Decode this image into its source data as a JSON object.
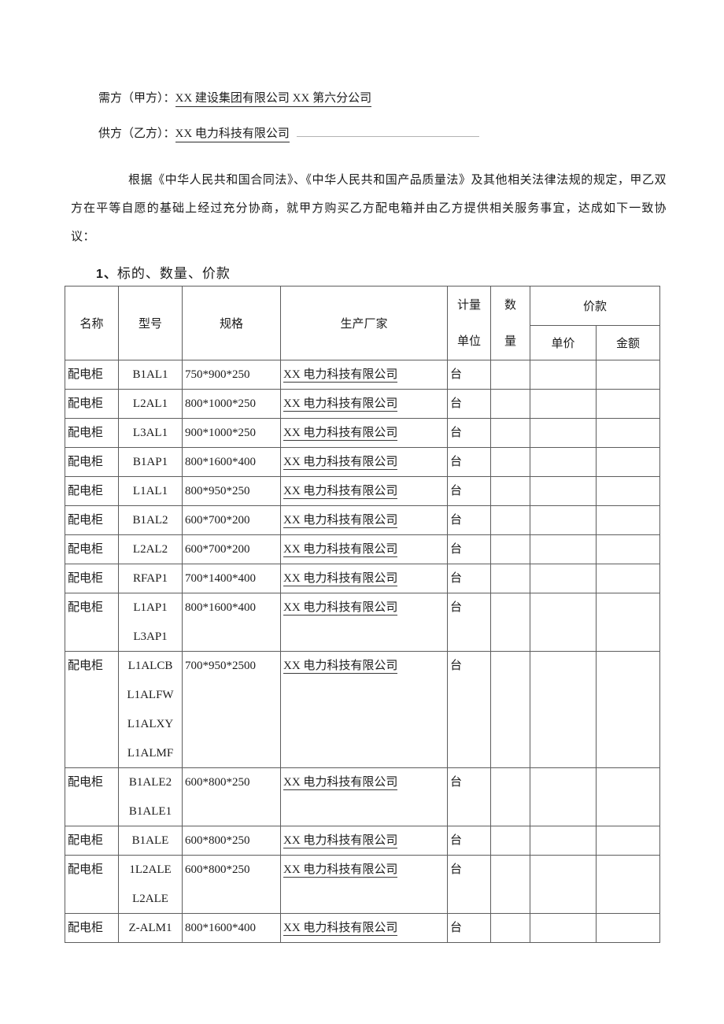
{
  "parties": {
    "buyer_label": "需方（甲方）：",
    "buyer_value": "XX 建设集团有限公司 XX 第六分公司",
    "supplier_label": "供方（乙方）：",
    "supplier_value": "XX 电力科技有限公司"
  },
  "intro": "根据《中华人民共和国合同法》、《中华人民共和国产品质量法》及其他相关法律法规的规定，甲乙双方在平等自愿的基础上经过充分协商，就甲方购买乙方配电箱并由乙方提供相关服务事宜，达成如下一致协议：",
  "section": {
    "number": "1、",
    "title": "标的、数量、价款"
  },
  "table": {
    "headers": {
      "name": "名称",
      "model": "型号",
      "spec": "规格",
      "manufacturer": "生产厂家",
      "unit_line1": "计量",
      "unit_line2": "单位",
      "qty_line1": "数",
      "qty_line2": "量",
      "price_group": "价款",
      "unit_price": "单价",
      "amount": "金额"
    },
    "rows": [
      {
        "name": "配电柜",
        "models": [
          "B1AL1"
        ],
        "spec": "750*900*250",
        "manufacturer": "XX 电力科技有限公司",
        "unit": "台",
        "qty": "",
        "unit_price": "",
        "amount": ""
      },
      {
        "name": "配电柜",
        "models": [
          "L2AL1"
        ],
        "spec": "800*1000*250",
        "manufacturer": "XX 电力科技有限公司",
        "unit": "台",
        "qty": "",
        "unit_price": "",
        "amount": ""
      },
      {
        "name": "配电柜",
        "models": [
          "L3AL1"
        ],
        "spec": "900*1000*250",
        "manufacturer": "XX 电力科技有限公司",
        "unit": "台",
        "qty": "",
        "unit_price": "",
        "amount": ""
      },
      {
        "name": "配电柜",
        "models": [
          "B1AP1"
        ],
        "spec": "800*1600*400",
        "manufacturer": "XX 电力科技有限公司",
        "unit": "台",
        "qty": "",
        "unit_price": "",
        "amount": ""
      },
      {
        "name": "配电柜",
        "models": [
          "L1AL1"
        ],
        "spec": "800*950*250",
        "manufacturer": "XX 电力科技有限公司",
        "unit": "台",
        "qty": "",
        "unit_price": "",
        "amount": ""
      },
      {
        "name": "配电柜",
        "models": [
          "B1AL2"
        ],
        "spec": "600*700*200",
        "manufacturer": "XX 电力科技有限公司",
        "unit": "台",
        "qty": "",
        "unit_price": "",
        "amount": ""
      },
      {
        "name": "配电柜",
        "models": [
          "L2AL2"
        ],
        "spec": "600*700*200",
        "manufacturer": "XX 电力科技有限公司",
        "unit": "台",
        "qty": "",
        "unit_price": "",
        "amount": ""
      },
      {
        "name": "配电柜",
        "models": [
          "RFAP1"
        ],
        "spec": "700*1400*400",
        "manufacturer": "XX 电力科技有限公司",
        "unit": "台",
        "qty": "",
        "unit_price": "",
        "amount": ""
      },
      {
        "name": "配电柜",
        "models": [
          "L1AP1",
          "L3AP1"
        ],
        "spec": "800*1600*400",
        "manufacturer": "XX 电力科技有限公司",
        "unit": "台",
        "qty": "",
        "unit_price": "",
        "amount": ""
      },
      {
        "name": "配电柜",
        "models": [
          "L1ALCB",
          "L1ALFW",
          "L1ALXY",
          "L1ALMF"
        ],
        "spec": "700*950*2500",
        "manufacturer": "XX 电力科技有限公司",
        "unit": "台",
        "qty": "",
        "unit_price": "",
        "amount": ""
      },
      {
        "name": "配电柜",
        "models": [
          "B1ALE2",
          "B1ALE1"
        ],
        "spec": "600*800*250",
        "manufacturer": "XX 电力科技有限公司",
        "unit": "台",
        "qty": "",
        "unit_price": "",
        "amount": ""
      },
      {
        "name": "配电柜",
        "models": [
          "B1ALE"
        ],
        "spec": "600*800*250",
        "manufacturer": "XX 电力科技有限公司",
        "unit": "台",
        "qty": "",
        "unit_price": "",
        "amount": ""
      },
      {
        "name": "配电柜",
        "models": [
          "1L2ALE",
          "L2ALE"
        ],
        "spec": "600*800*250",
        "manufacturer": "XX 电力科技有限公司",
        "unit": "台",
        "qty": "",
        "unit_price": "",
        "amount": ""
      },
      {
        "name": "配电柜",
        "models": [
          "Z-ALM1"
        ],
        "spec": "800*1600*400",
        "manufacturer": "XX 电力科技有限公司",
        "unit": "台",
        "qty": "",
        "unit_price": "",
        "amount": ""
      }
    ]
  }
}
